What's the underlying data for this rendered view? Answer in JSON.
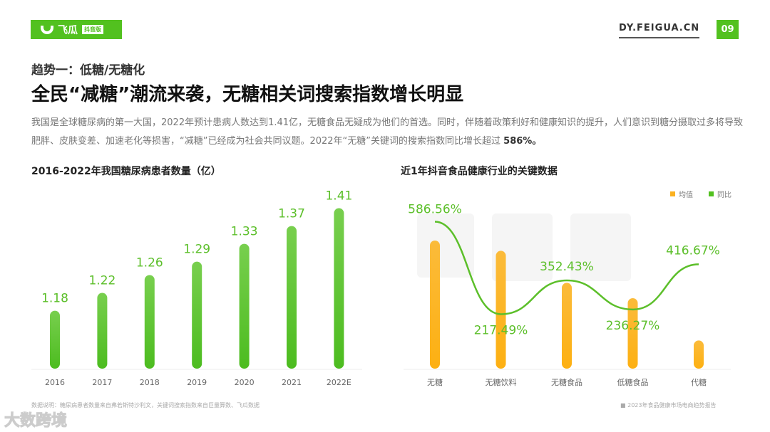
{
  "header": {
    "logo_text": "飞瓜",
    "logo_badge": "抖音版",
    "site": "DY.FEIGUA.CN",
    "page_number": "09"
  },
  "subtitle": "趋势一：低糖/无糖化",
  "title": "全民“减糖”潮流来袭，无糖相关词搜索指数增长明显",
  "description": {
    "text": "我国是全球糖尿病的第一大国，2022年预计患病人数达到1.41亿，无糖食品无疑成为他们的首选。同时，伴随着政策利好和健康知识的提升，人们意识到糖分摄取过多将导致肥胖、皮肤变差、加速老化等损害，“减糖”已经成为社会共同议题。2022年“无糖”关键词的搜索指数同比增长超过 ",
    "highlight": "586%。"
  },
  "watermark": "飞瓜数据",
  "corner_watermark": "大数跨境",
  "colors": {
    "green": "#52c11f",
    "orange": "#fbb120",
    "line": "#5cbf2a"
  },
  "chart_data": [
    {
      "type": "bar",
      "title": "2016-2022年我国糖尿病患者数量（亿）",
      "categories": [
        "2016",
        "2017",
        "2018",
        "2019",
        "2020",
        "2021",
        "2022E"
      ],
      "values": [
        1.18,
        1.22,
        1.26,
        1.29,
        1.33,
        1.37,
        1.41
      ],
      "data_labels": [
        "1.18",
        "1.22",
        "1.26",
        "1.29",
        "1.33",
        "1.37",
        "1.41"
      ],
      "ylim": [
        1.05,
        1.43
      ],
      "grid": false
    },
    {
      "type": "bar+line",
      "title": "近1年抖音食品健康行业的关键数据",
      "categories": [
        "无糖",
        "无糖饮料",
        "无糖食品",
        "低糖食品",
        "代糖"
      ],
      "series": [
        {
          "name": "均值",
          "type": "bar",
          "values": [
            100,
            92,
            67,
            55,
            22
          ],
          "unit": "relative index (unlabeled)"
        },
        {
          "name": "同比",
          "type": "line",
          "values": [
            586.56,
            217.49,
            352.43,
            236.27,
            416.67
          ],
          "data_labels": [
            "586.56%",
            "217.49%",
            "352.43%",
            "236.27%",
            "416.67%"
          ]
        }
      ],
      "legend": "top-right",
      "grid": false
    }
  ],
  "footer": {
    "note": "数据说明：糖尿病患者数量来自弗若斯特沙利文，关键词搜索指数来自巨量算数、飞瓜数据",
    "source": "2023年食品健康市场电商趋势报告"
  }
}
